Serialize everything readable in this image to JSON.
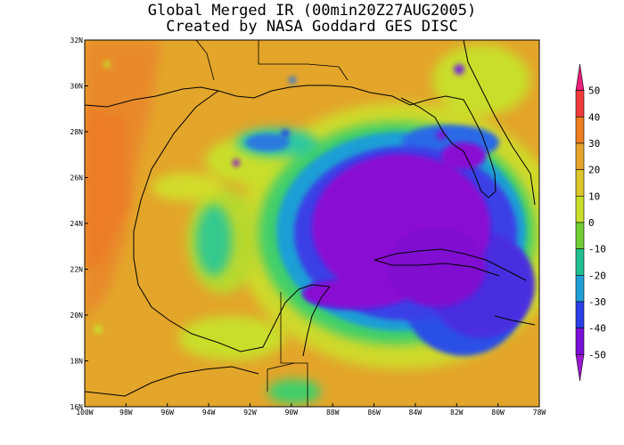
{
  "title": {
    "line1": "Global Merged IR (00min20Z27AUG2005)",
    "line2": "Created by NASA Goddard GES DISC"
  },
  "map": {
    "lon_range": [
      -100,
      -78
    ],
    "lat_range": [
      16,
      32
    ],
    "lon_ticks": [
      "100W",
      "98W",
      "96W",
      "94W",
      "92W",
      "90W",
      "88W",
      "86W",
      "84W",
      "82W",
      "80W",
      "78W"
    ],
    "lat_ticks": [
      "16N",
      "18N",
      "20N",
      "22N",
      "24N",
      "26N",
      "28N",
      "30N",
      "32N"
    ]
  },
  "colorbar": {
    "labels": [
      "50",
      "40",
      "30",
      "20",
      "10",
      "0",
      "-10",
      "-20",
      "-30",
      "-40",
      "-50"
    ],
    "colors": [
      "#e8207a",
      "#f03a3a",
      "#ee7d20",
      "#e6a52a",
      "#dcc62a",
      "#c9de2a",
      "#70cf34",
      "#1fbf8f",
      "#1f9fd6",
      "#2a3fe6",
      "#7a0fd6",
      "#9a1ad0"
    ]
  }
}
